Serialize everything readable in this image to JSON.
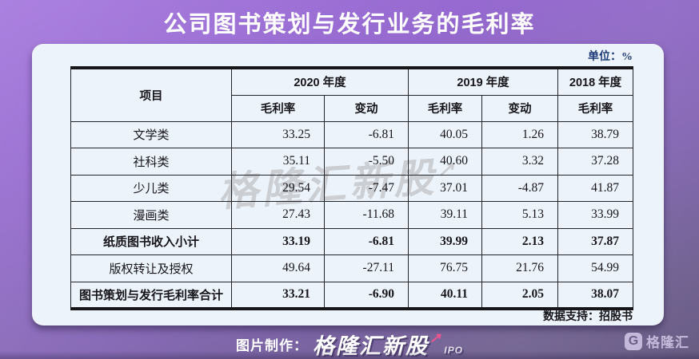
{
  "title": "公司图书策划与发行业务的毛利率",
  "unit_label": "单位：%",
  "table": {
    "item_header": "项目",
    "year_groups": [
      {
        "label": "2020 年度",
        "colspan": 2
      },
      {
        "label": "2019 年度",
        "colspan": 2
      },
      {
        "label": "2018 年度",
        "colspan": 1
      }
    ],
    "sub_headers": [
      "毛利率",
      "变动",
      "毛利率",
      "变动",
      "毛利率"
    ],
    "rows": [
      {
        "label": "文学类",
        "bold": false,
        "values": [
          "33.25",
          "-6.81",
          "40.05",
          "1.26",
          "38.79"
        ]
      },
      {
        "label": "社科类",
        "bold": false,
        "values": [
          "35.11",
          "-5.50",
          "40.60",
          "3.32",
          "37.28"
        ]
      },
      {
        "label": "少儿类",
        "bold": false,
        "values": [
          "29.54",
          "-7.47",
          "37.01",
          "-4.87",
          "41.87"
        ]
      },
      {
        "label": "漫画类",
        "bold": false,
        "values": [
          "27.43",
          "-11.68",
          "39.11",
          "5.13",
          "33.99"
        ]
      },
      {
        "label": "纸质图书收入小计",
        "bold": true,
        "values": [
          "33.19",
          "-6.81",
          "39.99",
          "2.13",
          "37.87"
        ]
      },
      {
        "label": "版权转让及授权",
        "bold": false,
        "values": [
          "49.64",
          "-27.11",
          "76.75",
          "21.76",
          "54.99"
        ]
      },
      {
        "label": "图书策划与发行毛利率合计",
        "bold": true,
        "values": [
          "33.21",
          "-6.90",
          "40.11",
          "2.05",
          "38.07"
        ]
      }
    ]
  },
  "data_support": "数据支持：招股书",
  "watermark": {
    "text": "格隆汇新股",
    "arrow": "↗"
  },
  "footer": {
    "prefix": "图片制作：",
    "logo_text": "格隆汇新股",
    "arrow_glyph": "↗",
    "logo_sub": "IPO"
  },
  "corner_logo": {
    "glyph": "G",
    "text": "格隆汇"
  },
  "colors": {
    "background_top": "#a273dd",
    "background_bottom": "#685c82",
    "card": "#edf3fa",
    "unit_text": "#1d3a78",
    "table_text": "#15151a",
    "footer_arrow": "#f2538f",
    "corner_logo": "#cdc1e2"
  },
  "chart_data": {
    "type": "table",
    "title": "公司图书策划与发行业务的毛利率",
    "unit": "%",
    "columns": [
      "项目",
      "2020年度 毛利率",
      "2020年度 变动",
      "2019年度 毛利率",
      "2019年度 变动",
      "2018年度 毛利率"
    ],
    "rows": [
      [
        "文学类",
        33.25,
        -6.81,
        40.05,
        1.26,
        38.79
      ],
      [
        "社科类",
        35.11,
        -5.5,
        40.6,
        3.32,
        37.28
      ],
      [
        "少儿类",
        29.54,
        -7.47,
        37.01,
        -4.87,
        41.87
      ],
      [
        "漫画类",
        27.43,
        -11.68,
        39.11,
        5.13,
        33.99
      ],
      [
        "纸质图书收入小计",
        33.19,
        -6.81,
        39.99,
        2.13,
        37.87
      ],
      [
        "版权转让及授权",
        49.64,
        -27.11,
        76.75,
        21.76,
        54.99
      ],
      [
        "图书策划与发行毛利率合计",
        33.21,
        -6.9,
        40.11,
        2.05,
        38.07
      ]
    ],
    "source_note": "数据支持：招股书"
  }
}
